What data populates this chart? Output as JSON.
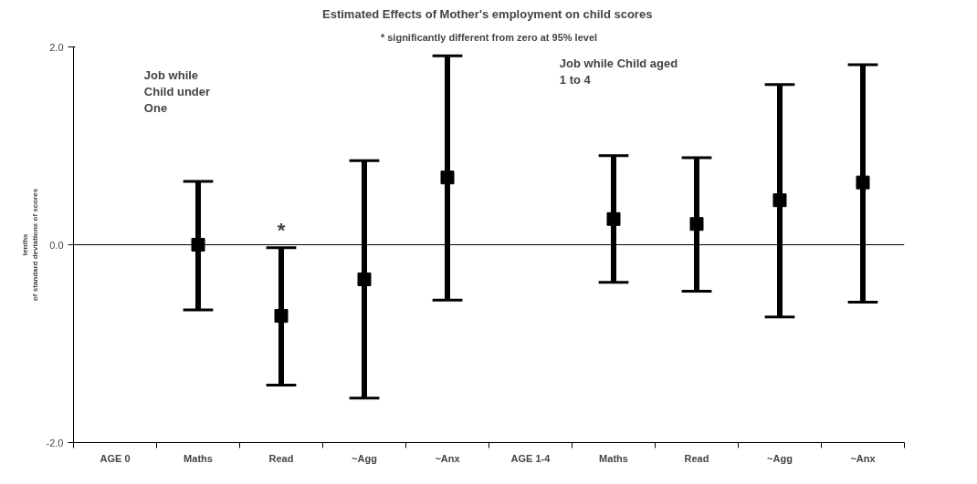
{
  "chart_data": {
    "type": "scatter",
    "title": "Estimated  Effects of Mother's employment on child scores",
    "ylabel": "tenths\nof standard deviations of scores",
    "categories": [
      "AGE 0",
      "Maths",
      "Read",
      "~Agg",
      "~Anx",
      "AGE 1-4",
      "Maths",
      "Read",
      "~Agg",
      "~Anx"
    ],
    "values": [
      null,
      0.0,
      -0.72,
      -0.35,
      0.68,
      null,
      0.26,
      0.21,
      0.45,
      0.63
    ],
    "errors": [
      null,
      [
        -0.66,
        0.64
      ],
      [
        -1.42,
        -0.03
      ],
      [
        -1.55,
        0.85
      ],
      [
        -0.56,
        1.91
      ],
      null,
      [
        -0.38,
        0.9
      ],
      [
        -0.47,
        0.88
      ],
      [
        -0.73,
        1.62
      ],
      [
        -0.58,
        1.82
      ]
    ],
    "color": "#000000",
    "marker": "square",
    "ylim": [
      -2.0,
      2.0
    ],
    "yticks": [
      {
        "value": -2,
        "label": "-2.0"
      },
      {
        "value": 0,
        "label": "0.0"
      },
      {
        "value": 2,
        "label": "2.0"
      }
    ],
    "ref_lines": [
      {
        "axis": "y",
        "value": 0,
        "color": "#000000"
      }
    ],
    "grid": false,
    "annotations": [
      "* significantly different from zero at 95% level",
      "Job while\nChild under\nOne",
      "Job while Child aged\n1 to 4",
      "*"
    ]
  }
}
